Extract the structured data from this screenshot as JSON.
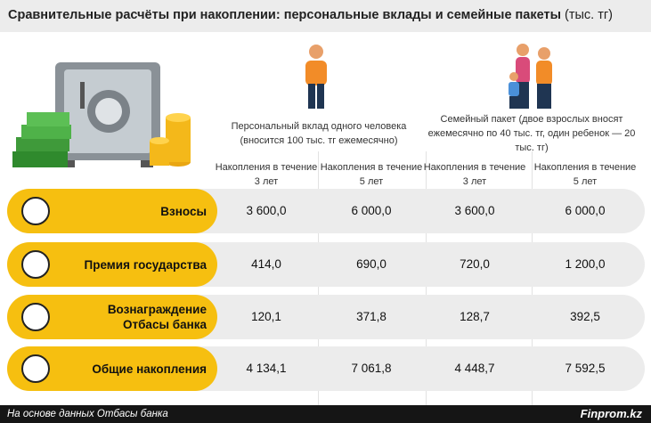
{
  "header": {
    "title": "Сравнительные расчёты при накоплении: персональные вклады и семейные пакеты",
    "unit": "(тыс. тг)"
  },
  "table": {
    "groups": [
      "Персональный вклад одного человека (вносится 100 тыс. тг ежемесячно)",
      "Семейный пакет (двое взрослых вносят ежемесячно по 40 тыс. тг, один ребенок — 20 тыс. тг)"
    ],
    "columns": [
      "Накопления в течение 3 лет",
      "Накопления в течение 5 лет",
      "Накопления в течение 3 лет",
      "Накопления в течение 5 лет"
    ],
    "rows": [
      {
        "label": "Взносы",
        "cells": [
          "3 600,0",
          "6 000,0",
          "3 600,0",
          "6 000,0"
        ]
      },
      {
        "label": "Премия государства",
        "cells": [
          "414,0",
          "690,0",
          "720,0",
          "1 200,0"
        ]
      },
      {
        "label": "Вознаграждение Отбасы банка",
        "cells": [
          "120,1",
          "371,8",
          "128,7",
          "392,5"
        ]
      },
      {
        "label": "Общие накопления",
        "cells": [
          "4 134,1",
          "7 061,8",
          "4 448,7",
          "7 592,5"
        ]
      }
    ]
  },
  "footer": {
    "source": "На основе данных Отбасы банка",
    "brand": "Finprom.kz"
  }
}
